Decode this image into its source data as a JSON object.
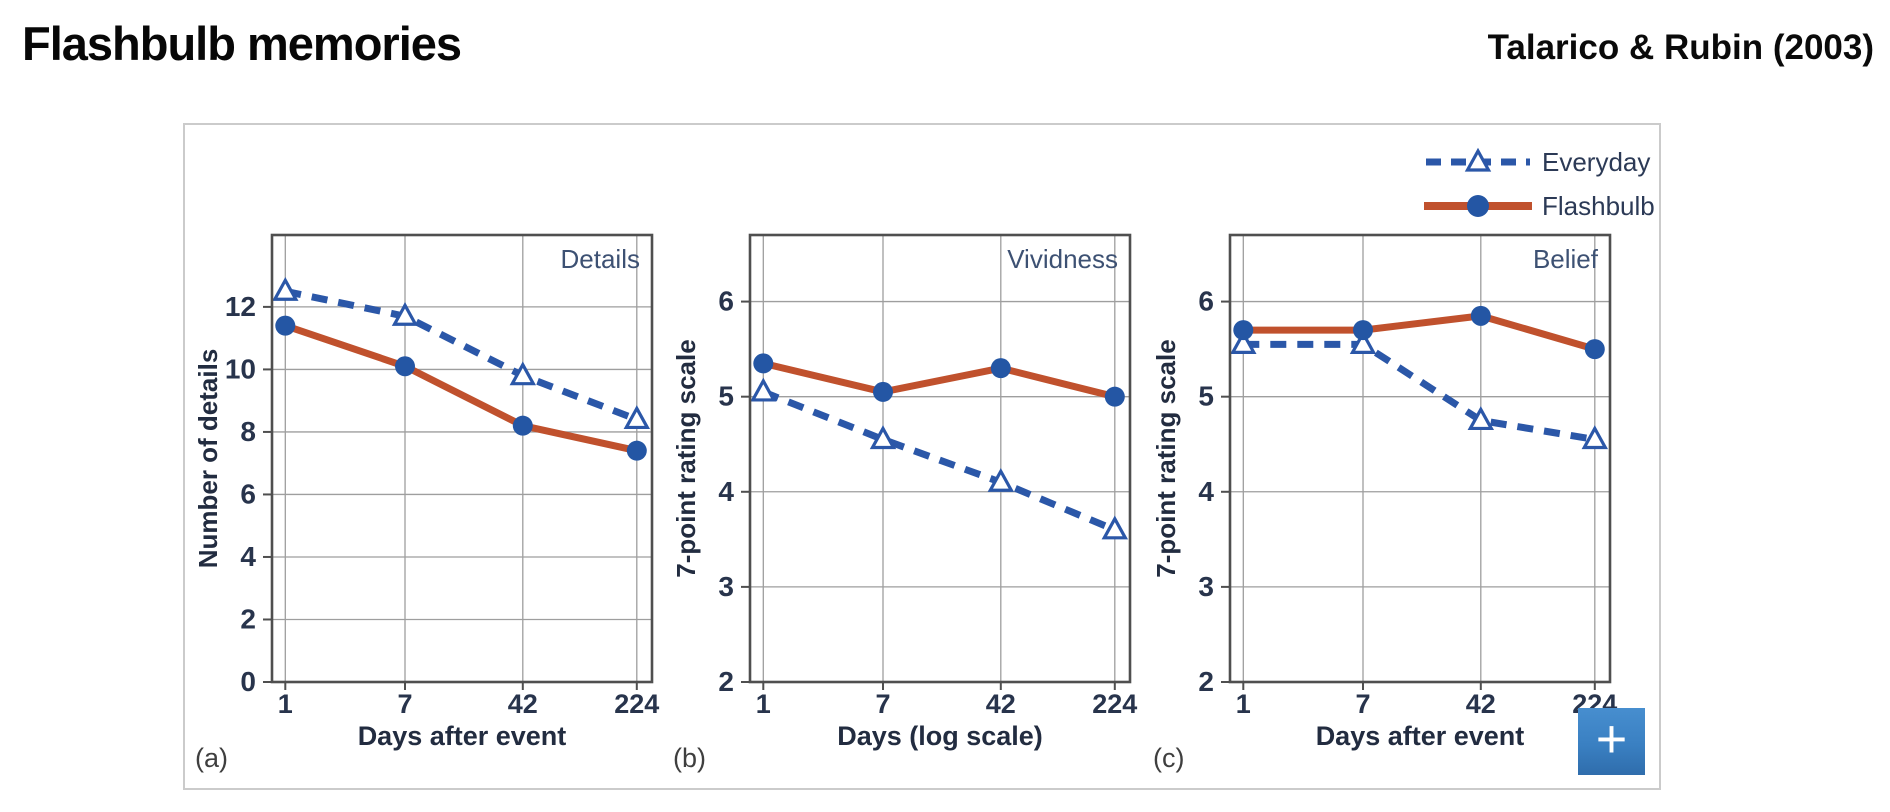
{
  "page": {
    "title": "Flashbulb memories",
    "citation": "Talarico & Rubin (2003)"
  },
  "legend": {
    "items": [
      {
        "label": "Everyday",
        "series": "everyday",
        "line_style": "dashed",
        "marker": "triangle-open"
      },
      {
        "label": "Flashbulb",
        "series": "flashbulb",
        "line_style": "solid",
        "marker": "circle"
      }
    ]
  },
  "add_button": {
    "label": "+"
  },
  "colors": {
    "everyday_blue": "#2b57a8",
    "flashbulb_orange": "#c0512d",
    "marker_blue": "#2456a4",
    "grid": "#9e9e9e",
    "plot_border": "#4f4f4f",
    "tick_text": "#28344c",
    "chart_title_text": "#3d5173",
    "axis_label_text": "#222c40",
    "panel_label_text": "#3f3f3f",
    "figure_border": "#cbcbcb",
    "add_button_blue": "#3a80c2"
  },
  "chart_data": [
    {
      "type": "line",
      "panel": "(a)",
      "title": "Details",
      "xlabel": "Days after event",
      "ylabel": "Number of details",
      "x_tick_labels": [
        "1",
        "7",
        "42",
        "224"
      ],
      "x_scale_note": "log-spaced days",
      "ylim": [
        0,
        14.3
      ],
      "yticks": [
        0,
        2,
        4,
        6,
        8,
        10,
        12
      ],
      "grid": true,
      "series": [
        {
          "name": "Everyday",
          "color_key": "everyday_blue",
          "style": "dashed",
          "marker": "triangle-open",
          "values": [
            12.5,
            11.7,
            9.8,
            8.4
          ]
        },
        {
          "name": "Flashbulb",
          "color_key": "flashbulb_orange",
          "style": "solid",
          "marker": "circle",
          "values": [
            11.4,
            10.1,
            8.2,
            7.4
          ]
        }
      ]
    },
    {
      "type": "line",
      "panel": "(b)",
      "title": "Vividness",
      "xlabel": "Days (log scale)",
      "ylabel": "7-point rating scale",
      "x_tick_labels": [
        "1",
        "7",
        "42",
        "224"
      ],
      "x_scale_note": "log-spaced days",
      "ylim": [
        2,
        6.7
      ],
      "yticks": [
        2,
        3,
        4,
        5,
        6
      ],
      "grid": true,
      "series": [
        {
          "name": "Everyday",
          "color_key": "everyday_blue",
          "style": "dashed",
          "marker": "triangle-open",
          "values": [
            5.05,
            4.55,
            4.1,
            3.6
          ]
        },
        {
          "name": "Flashbulb",
          "color_key": "flashbulb_orange",
          "style": "solid",
          "marker": "circle",
          "values": [
            5.35,
            5.05,
            5.3,
            5.0
          ]
        }
      ]
    },
    {
      "type": "line",
      "panel": "(c)",
      "title": "Belief",
      "xlabel": "Days after event",
      "ylabel": "7-point rating scale",
      "x_tick_labels": [
        "1",
        "7",
        "42",
        "224"
      ],
      "x_scale_note": "log-spaced days",
      "ylim": [
        2,
        6.7
      ],
      "yticks": [
        2,
        3,
        4,
        5,
        6
      ],
      "grid": true,
      "series": [
        {
          "name": "Everyday",
          "color_key": "everyday_blue",
          "style": "dashed",
          "marker": "triangle-open",
          "values": [
            5.55,
            5.55,
            4.75,
            4.55
          ]
        },
        {
          "name": "Flashbulb",
          "color_key": "flashbulb_orange",
          "style": "solid",
          "marker": "circle",
          "values": [
            5.7,
            5.7,
            5.85,
            5.5
          ]
        }
      ]
    }
  ]
}
